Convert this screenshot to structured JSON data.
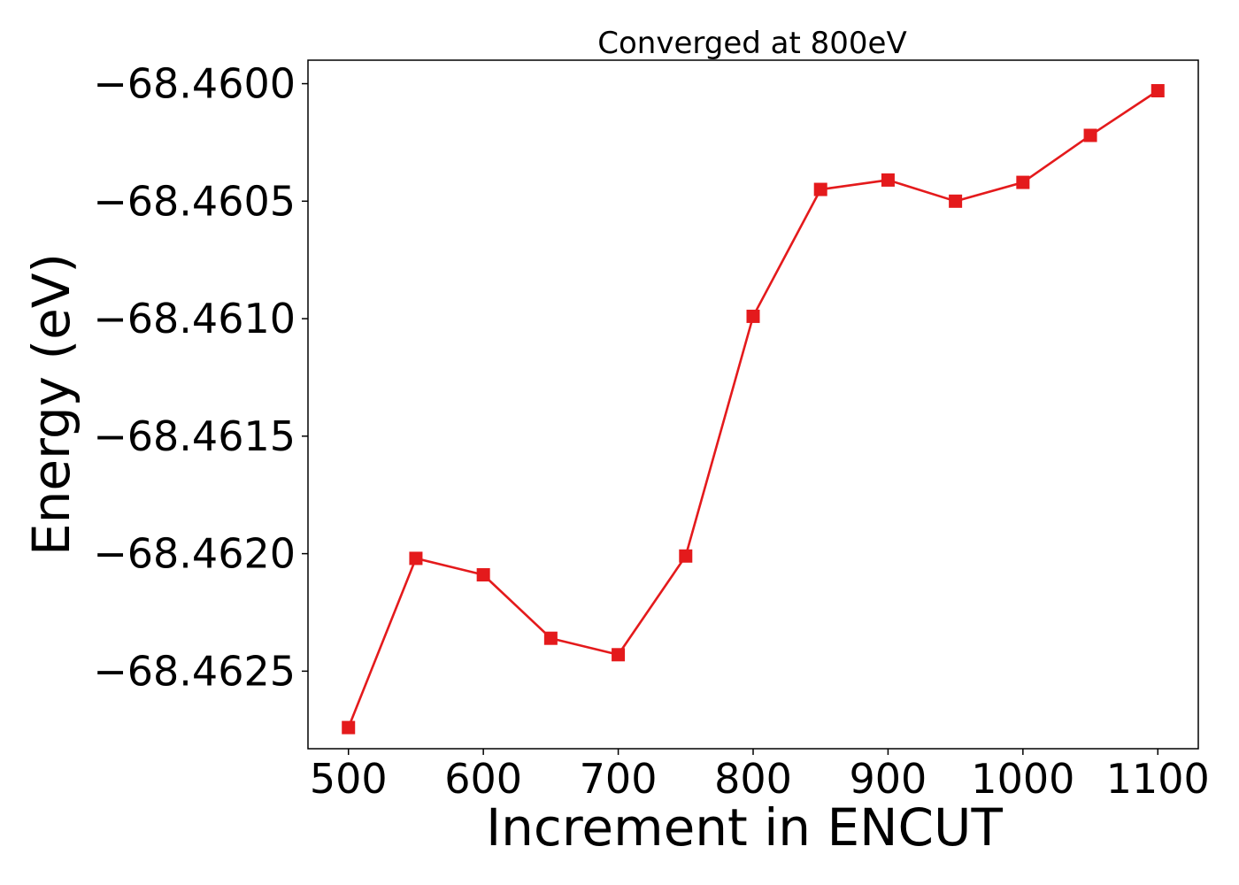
{
  "chart_data": {
    "type": "line",
    "title": "Converged at 800eV",
    "xlabel": "Increment in ENCUT",
    "ylabel": "Energy (eV)",
    "x": [
      500,
      550,
      600,
      650,
      700,
      750,
      800,
      850,
      900,
      950,
      1000,
      1050,
      1100
    ],
    "series": [
      {
        "values": [
          -68.46274,
          -68.46202,
          -68.46209,
          -68.46236,
          -68.46243,
          -68.46201,
          -68.46099,
          -68.46045,
          -68.46041,
          -68.4605,
          -68.46042,
          -68.46022,
          -68.46003
        ],
        "color": "#e41a1c",
        "marker": "square"
      }
    ],
    "xlim": [
      470,
      1130
    ],
    "ylim": [
      -68.46283,
      -68.4599
    ],
    "xticks": [
      500,
      600,
      700,
      800,
      900,
      1000,
      1100
    ],
    "xtick_labels": [
      "500",
      "600",
      "700",
      "800",
      "900",
      "1000",
      "1100"
    ],
    "yticks": [
      -68.46,
      -68.4605,
      -68.461,
      -68.4615,
      -68.462,
      -68.4625
    ],
    "ytick_labels": [
      "−68.4600",
      "−68.4605",
      "−68.4610",
      "−68.4615",
      "−68.4620",
      "−68.4625"
    ],
    "grid": false,
    "legend": false
  }
}
